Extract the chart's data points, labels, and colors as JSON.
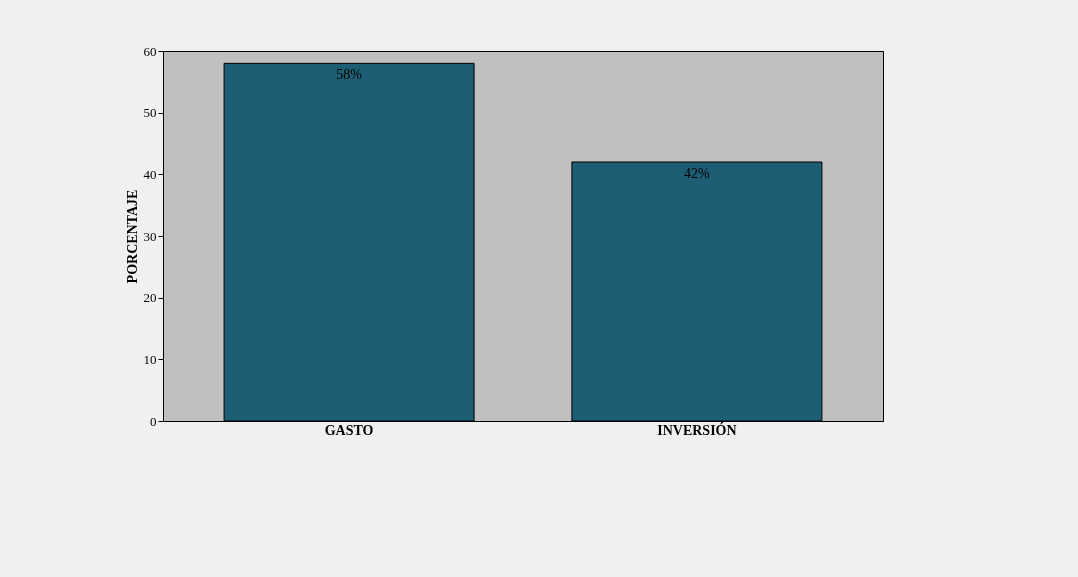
{
  "chart_data": {
    "type": "bar",
    "ylabel": "PORCENTAJE",
    "categories": [
      "GASTO",
      "INVERSIÓN"
    ],
    "values": [
      58,
      42
    ],
    "value_labels": [
      "58%",
      "42%"
    ],
    "color": "#1d5e74",
    "ylim": [
      0,
      60
    ],
    "yticks": [
      0,
      10,
      20,
      30,
      40,
      50,
      60
    ],
    "grid": false
  }
}
